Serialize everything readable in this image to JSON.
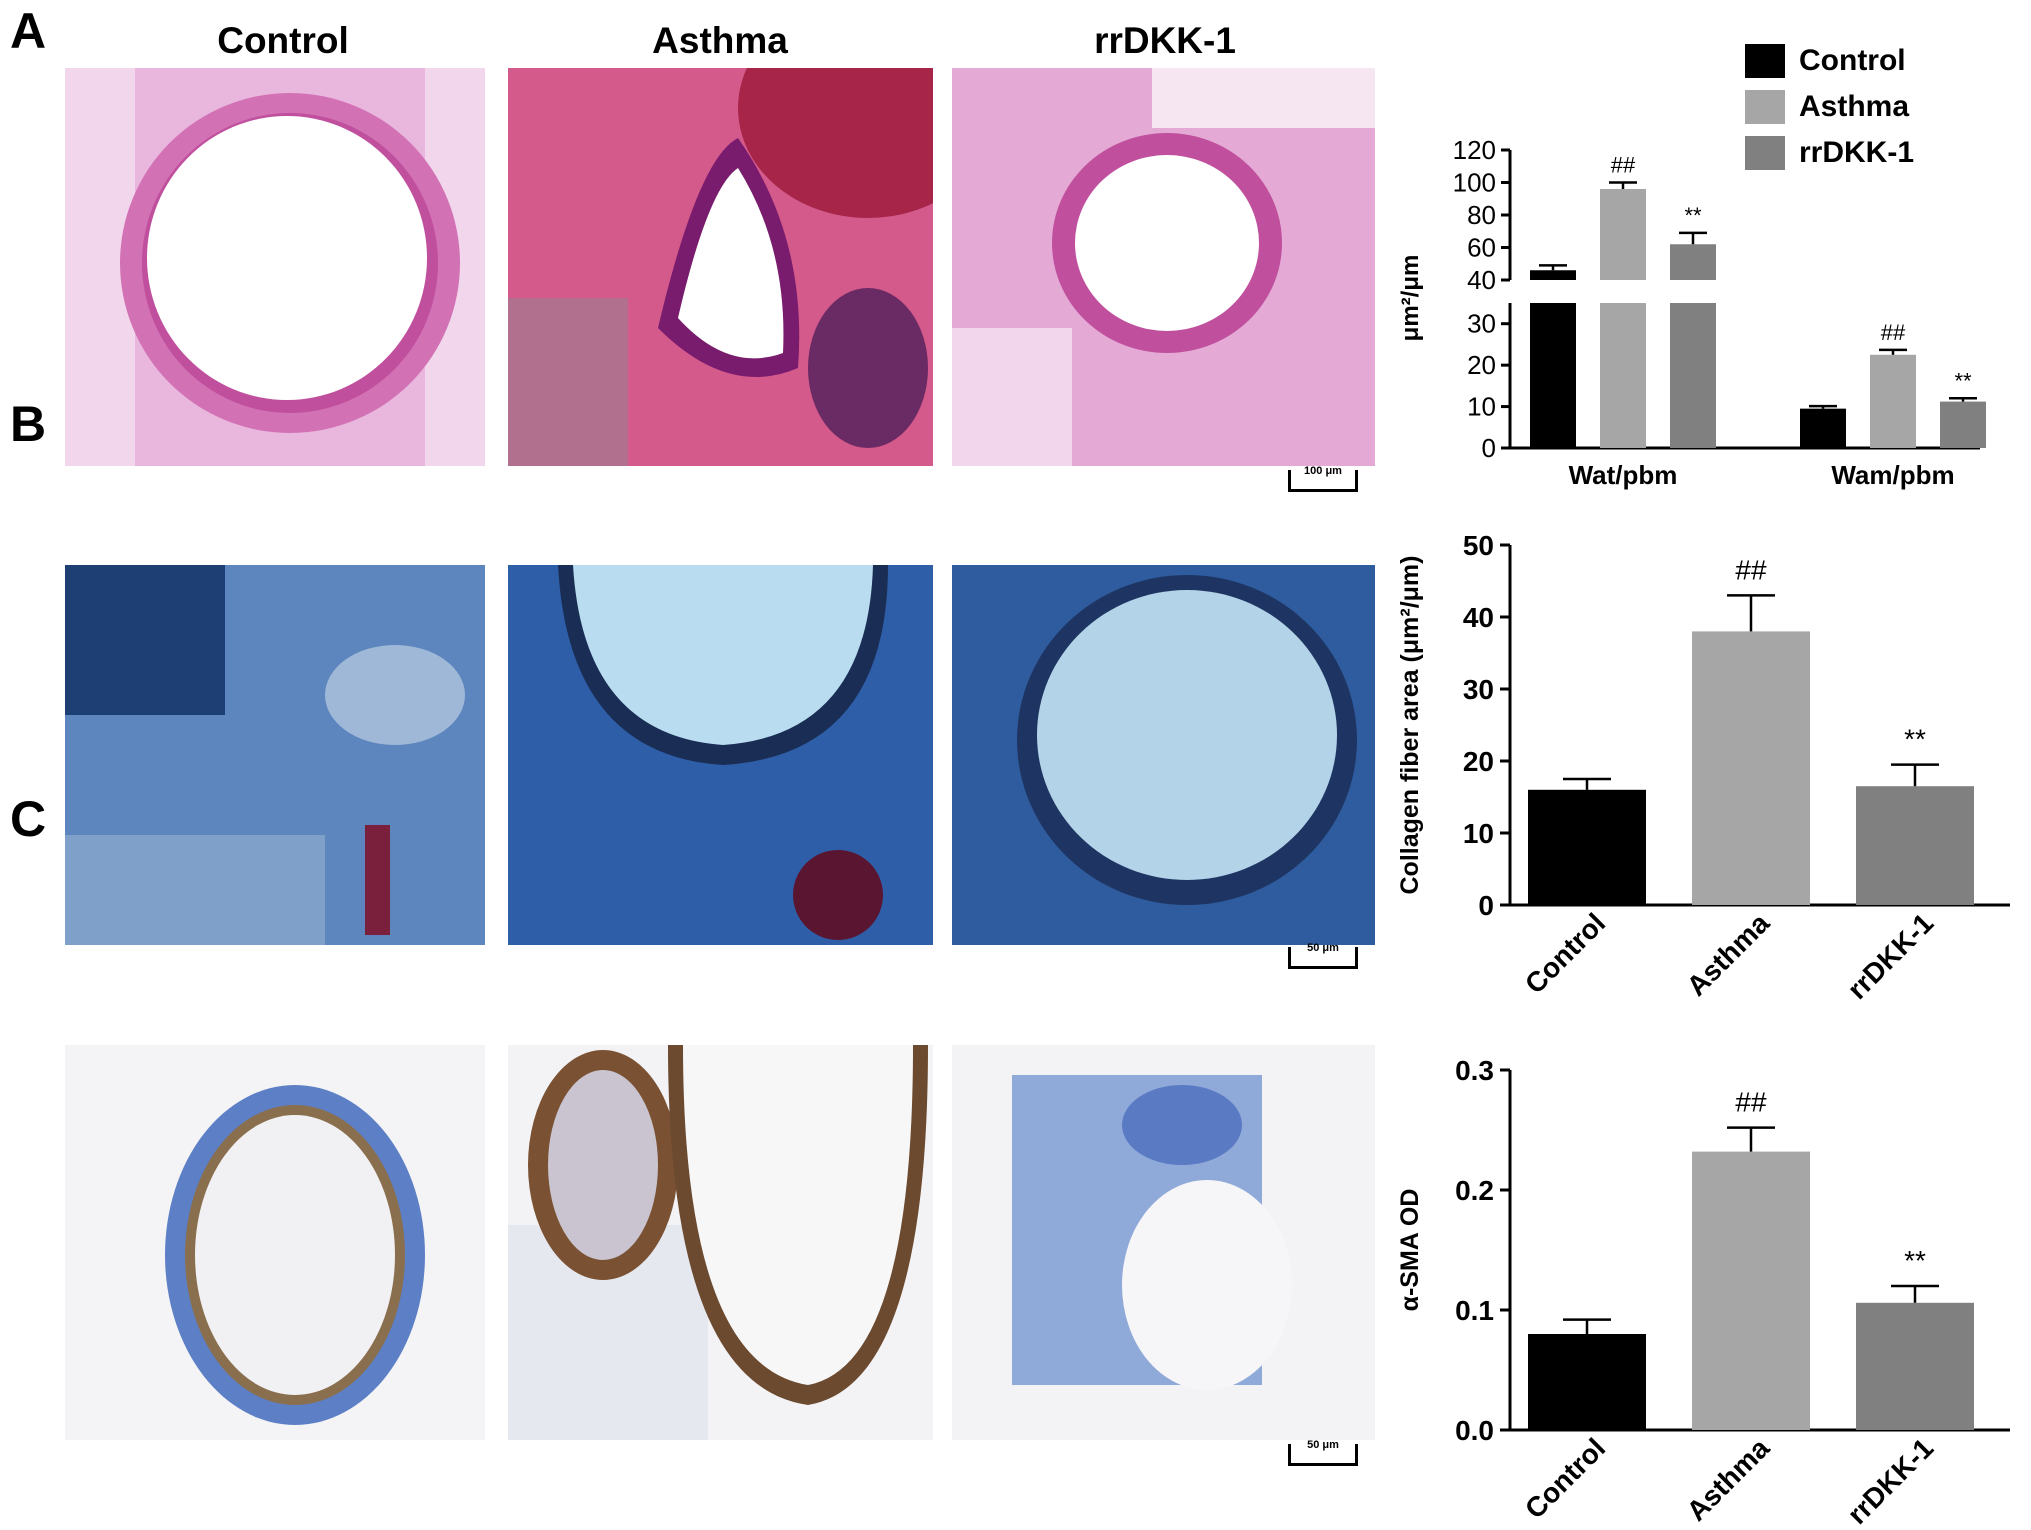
{
  "panels": {
    "A": {
      "letter": "A"
    },
    "B": {
      "letter": "B"
    },
    "C": {
      "letter": "C"
    }
  },
  "column_titles": [
    "Control",
    "Asthma",
    "rrDKK-1"
  ],
  "scale_bars": {
    "A": "100 μm",
    "B": "50 μm",
    "C": "50 μm"
  },
  "legend": [
    {
      "label": "Control",
      "color": "#000000"
    },
    {
      "label": "Asthma",
      "color": "#a6a6a6"
    },
    {
      "label": "rrDKK-1",
      "color": "#808080"
    }
  ],
  "colors": {
    "control": "#000000",
    "asthma": "#a6a6a6",
    "rrdkk1": "#808080",
    "he_stain": "#d873b8",
    "masson_stain": "#4f78b2",
    "ihc_stain": "#3f66b8"
  },
  "chart_data": [
    {
      "type": "bar",
      "panel": "A",
      "categories": [
        "Wat/pbm",
        "Wam/pbm"
      ],
      "series": [
        {
          "name": "Control",
          "values": [
            46,
            9.5
          ],
          "errors": [
            3,
            0.6
          ]
        },
        {
          "name": "Asthma",
          "values": [
            96,
            22.5
          ],
          "errors": [
            4,
            1.2
          ]
        },
        {
          "name": "rrDKK-1",
          "values": [
            62,
            11.2
          ],
          "errors": [
            7,
            0.8
          ]
        }
      ],
      "annotations": [
        [
          "",
          ""
        ],
        [
          "##",
          "##"
        ],
        [
          "**",
          "**"
        ]
      ],
      "ylabel": "μm²/μm",
      "axis_break": [
        35,
        40
      ],
      "ylim_lower": [
        0,
        35
      ],
      "yticks_lower": [
        "0",
        "10",
        "20",
        "30"
      ],
      "ylim_upper": [
        40,
        120
      ],
      "yticks_upper": [
        "40",
        "60",
        "80",
        "100",
        "120"
      ]
    },
    {
      "type": "bar",
      "panel": "B",
      "categories": [
        "Control",
        "Asthma",
        "rrDKK-1"
      ],
      "values": [
        16,
        38,
        16.5
      ],
      "errors": [
        1.5,
        5,
        3
      ],
      "annotations": [
        "",
        "##",
        "**"
      ],
      "ylabel": "Collagen fiber area (μm²/μm)",
      "ylim": [
        0,
        50
      ],
      "yticks": [
        "0",
        "10",
        "20",
        "30",
        "40",
        "50"
      ]
    },
    {
      "type": "bar",
      "panel": "C",
      "categories": [
        "Control",
        "Asthma",
        "rrDKK-1"
      ],
      "values": [
        0.08,
        0.232,
        0.106
      ],
      "errors": [
        0.012,
        0.02,
        0.014
      ],
      "annotations": [
        "",
        "##",
        "**"
      ],
      "ylabel": "α-SMA OD",
      "ylim": [
        0,
        0.3
      ],
      "yticks": [
        "0.0",
        "0.1",
        "0.2",
        "0.3"
      ]
    }
  ]
}
